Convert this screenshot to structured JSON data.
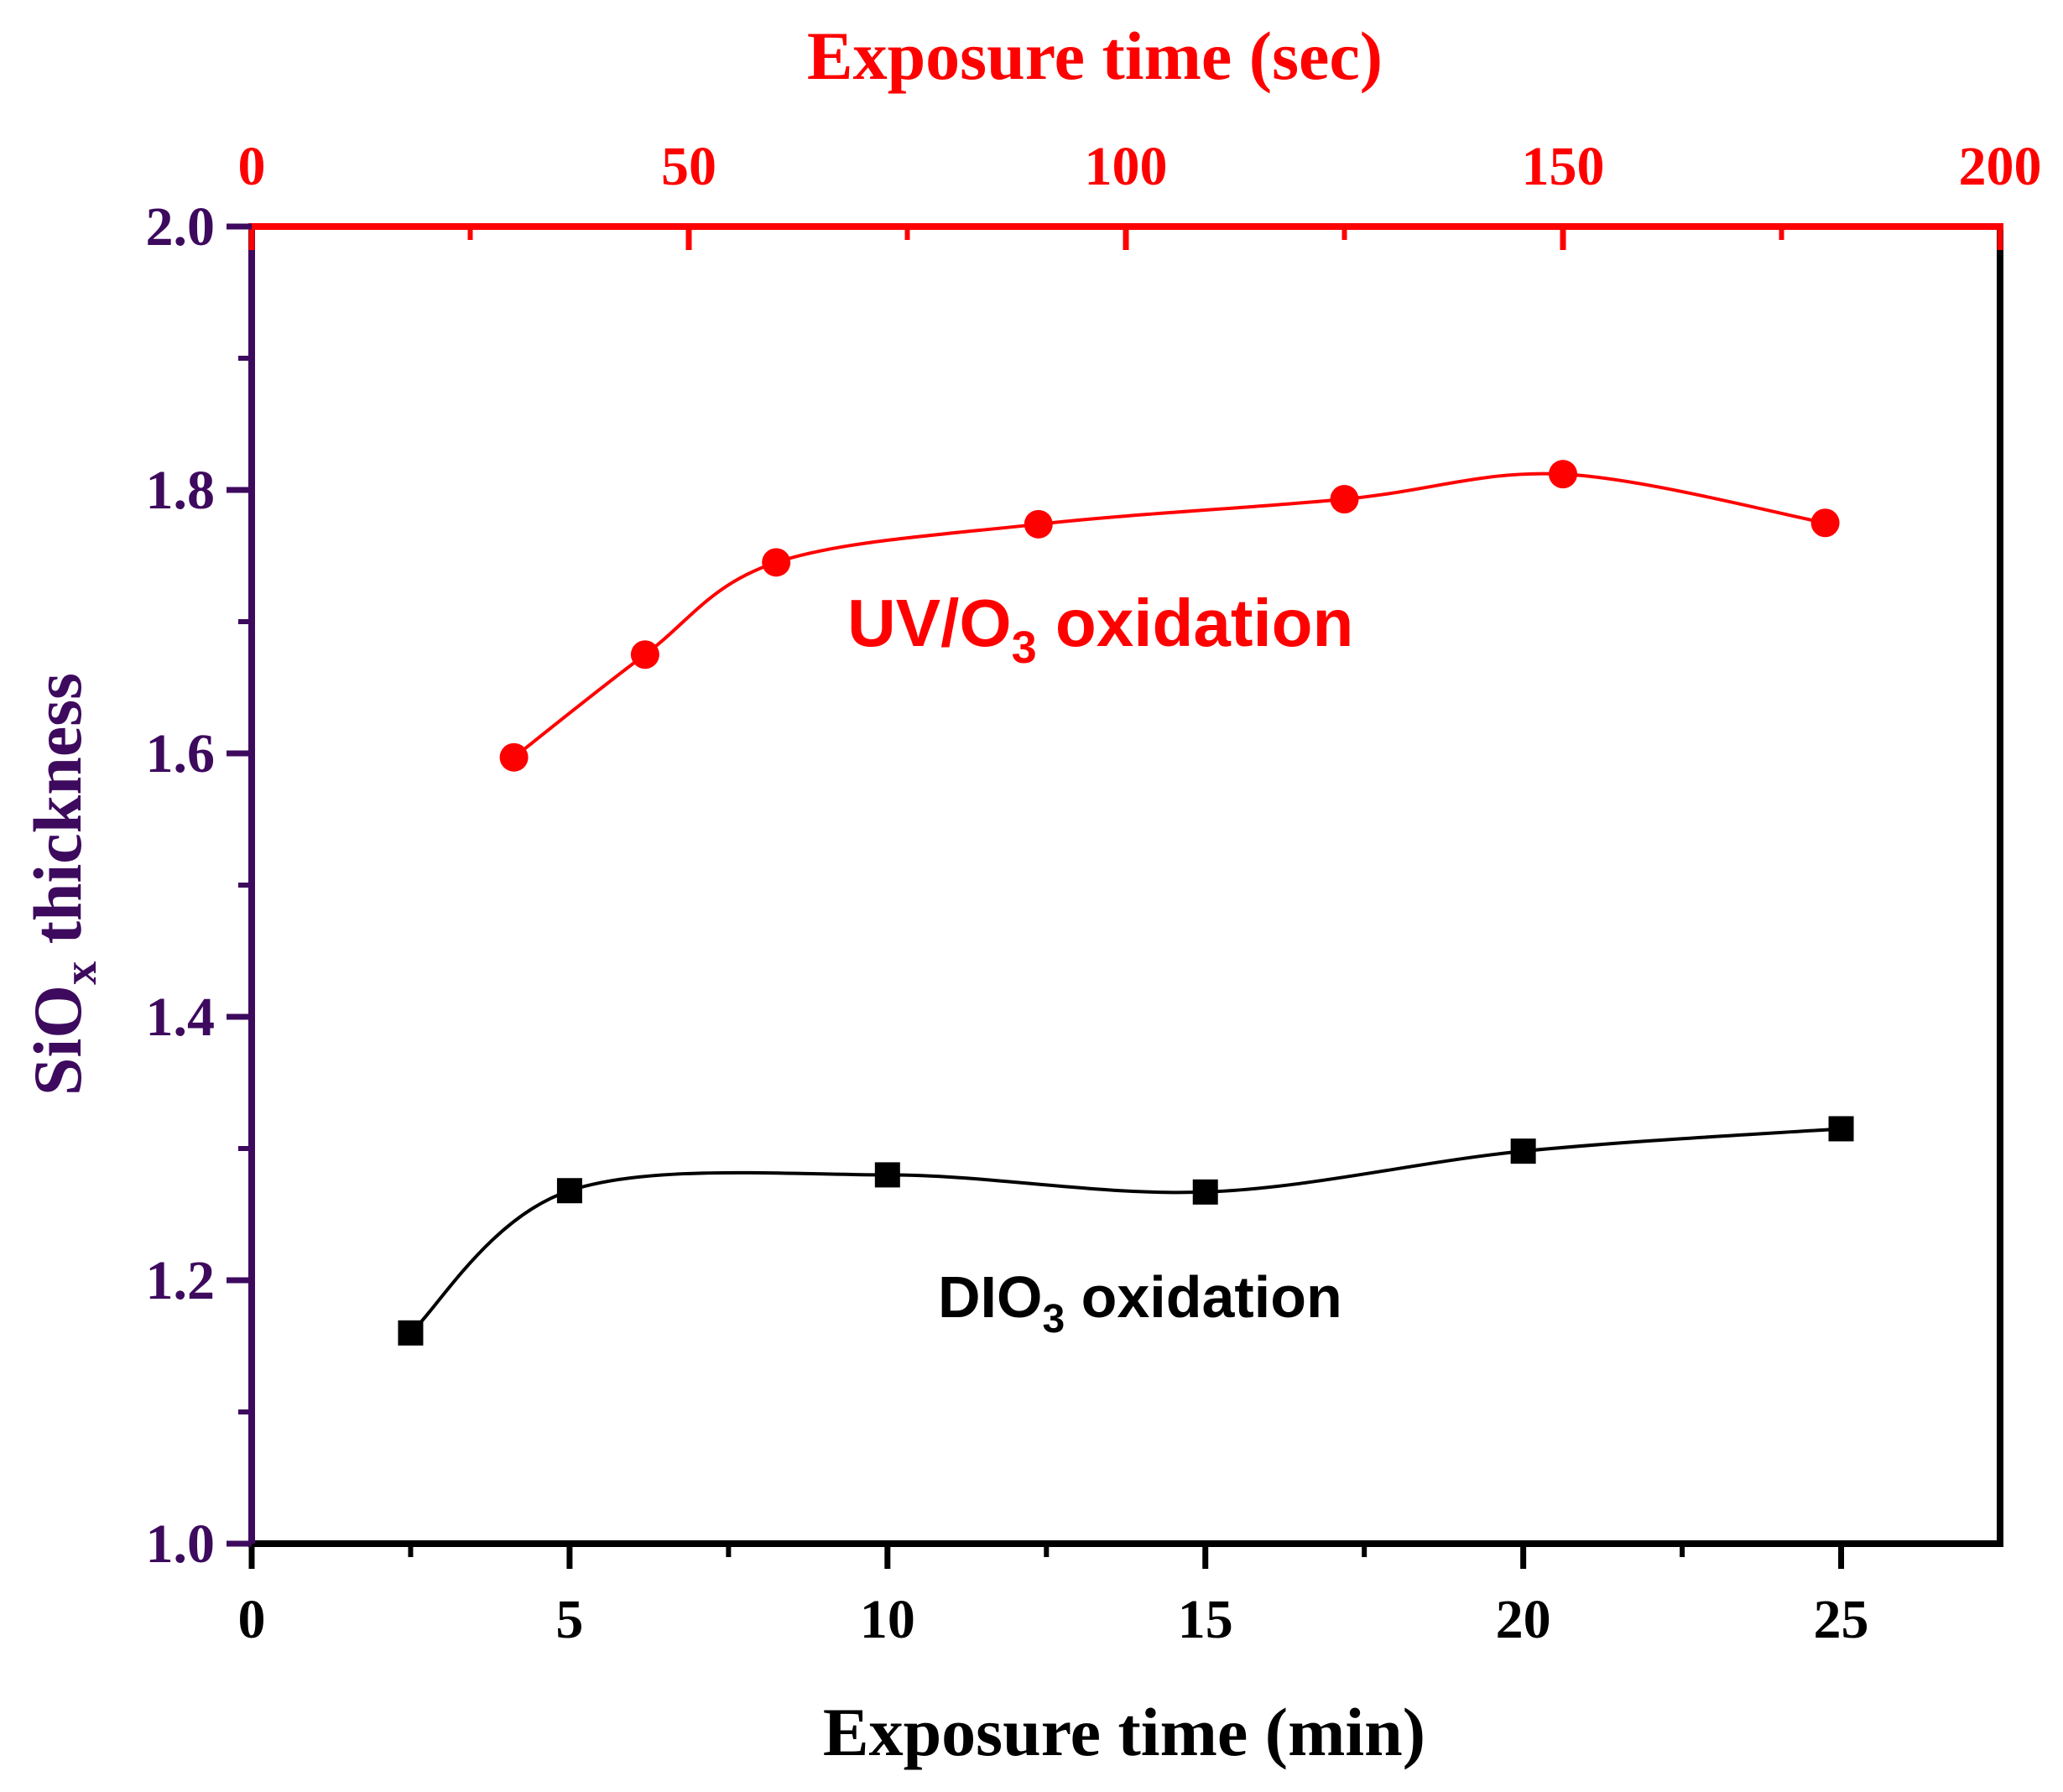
{
  "colors": {
    "uv_series": "#ff0000",
    "dio_series": "#000000",
    "left_axis": "#3d0a5e",
    "top_axis": "#ff0000",
    "frame": "#000000"
  },
  "chart_data": {
    "type": "line",
    "title": "",
    "xlabel": "Exposure time (min)",
    "x2label": "Exposure time (sec)",
    "ylabel_main": "SiO",
    "ylabel_sub": "x",
    "ylabel_tail": " thickness",
    "xlim": [
      0,
      27.5
    ],
    "x2lim": [
      0,
      200
    ],
    "ylim": [
      1.0,
      2.0
    ],
    "xticks": [
      0,
      5,
      10,
      15,
      20,
      25
    ],
    "xtick_labels": [
      "0",
      "5",
      "10",
      "15",
      "20",
      "25"
    ],
    "x2ticks": [
      0,
      50,
      100,
      150,
      200
    ],
    "x2tick_labels": [
      "0",
      "50",
      "100",
      "150",
      "200"
    ],
    "yticks": [
      1.0,
      1.2,
      1.4,
      1.6,
      1.8,
      2.0
    ],
    "ytick_labels": [
      "1.0",
      "1.2",
      "1.4",
      "1.6",
      "1.8",
      "2.0"
    ],
    "grid": false,
    "series": [
      {
        "name": "DIO3 oxidation",
        "axis": "bottom",
        "marker": "square",
        "x": [
          2.5,
          5,
          10,
          15,
          20,
          25
        ],
        "y": [
          1.16,
          1.268,
          1.28,
          1.267,
          1.298,
          1.315
        ]
      },
      {
        "name": "UV/O3 oxidation",
        "axis": "top",
        "marker": "circle",
        "x": [
          30,
          45,
          60,
          90,
          125,
          150,
          180
        ],
        "y": [
          1.597,
          1.675,
          1.745,
          1.774,
          1.793,
          1.812,
          1.775
        ]
      }
    ],
    "annotations": {
      "uv": {
        "main": "UV/O",
        "sub": "3",
        "tail": " oxidation"
      },
      "dio": {
        "main": "DIO",
        "sub": "3",
        "tail": " oxidation"
      }
    }
  }
}
